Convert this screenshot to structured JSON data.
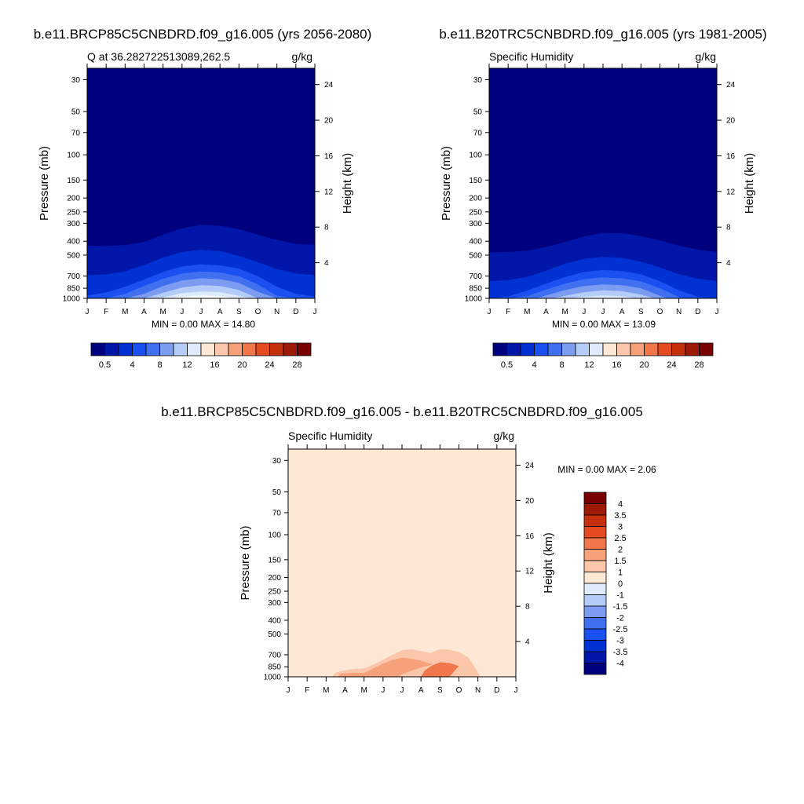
{
  "panels": [
    {
      "title": "b.e11.BRCP85C5CNBDRD.f09_g16.005 (yrs 2056-2080)",
      "left_label": "Q at 36.282722513089,262.5",
      "right_label": "g/kg",
      "stats": "MIN =   0.00 MAX =  14.80"
    },
    {
      "title": "b.e11.B20TRC5CNBDRD.f09_g16.005 (yrs 1981-2005)",
      "left_label": "Specific Humidity",
      "right_label": "g/kg",
      "stats": "MIN =   0.00 MAX =  13.09"
    },
    {
      "title": "b.e11.BRCP85C5CNBDRD.f09_g16.005 - b.e11.B20TRC5CNBDRD.f09_g16.005",
      "left_label": "Specific Humidity",
      "right_label": "g/kg",
      "stats": "MIN =   0.00 MAX =   2.06"
    }
  ],
  "colors": {
    "abs_colorbar": [
      "#00007f",
      "#0016a8",
      "#0031d3",
      "#1a4ff1",
      "#4070f0",
      "#7c9cf2",
      "#b6ccf8",
      "#deebfb",
      "#fde8d6",
      "#fbc6aa",
      "#f7a17a",
      "#f0774b",
      "#e64a20",
      "#c52f0c",
      "#9c1a06",
      "#780000"
    ],
    "diff_colorbar": [
      "#00007f",
      "#0016a8",
      "#0031d3",
      "#1a4ff1",
      "#4070f0",
      "#7c9cf2",
      "#b6ccf8",
      "#deebfb",
      "#fde8d6",
      "#fbc6aa",
      "#f7a17a",
      "#f0774b",
      "#e64a20",
      "#c52f0c",
      "#9c1a06",
      "#780000"
    ]
  },
  "chart_data": [
    {
      "type": "heatmap",
      "title": "b.e11.BRCP85C5CNBDRD.f09_g16.005 (yrs 2056-2080)",
      "subtitle": "Q at 36.282722513089,262.5",
      "units": "g/kg",
      "xlabel": "",
      "ylabel": "Pressure (mb)",
      "y2label": "Height (km)",
      "x_ticks": [
        "J",
        "F",
        "M",
        "A",
        "M",
        "J",
        "J",
        "A",
        "S",
        "O",
        "N",
        "D",
        "J"
      ],
      "y_ticks": [
        30,
        50,
        70,
        100,
        150,
        200,
        250,
        300,
        400,
        500,
        700,
        850,
        1000
      ],
      "y2_ticks": [
        24,
        20,
        16,
        12,
        8,
        4
      ],
      "ylim": [
        1000,
        25
      ],
      "y_scale": "log",
      "min": 0.0,
      "max": 14.8,
      "colorbar": {
        "orientation": "horizontal",
        "labels": [
          "0.5",
          "4",
          "8",
          "12",
          "16",
          "20",
          "24",
          "28"
        ]
      },
      "contour_levels": [
        0.5,
        2,
        4,
        6,
        8,
        10,
        12,
        14
      ],
      "contour_level_colors": [
        "#0016a8",
        "#0031d3",
        "#1a4ff1",
        "#4070f0",
        "#7c9cf2",
        "#b6ccf8",
        "#deebfb",
        "#ffffff"
      ],
      "contours": [
        [
          [
            0,
            430
          ],
          [
            1,
            432
          ],
          [
            2,
            425
          ],
          [
            3,
            405
          ],
          [
            4,
            360
          ],
          [
            5,
            325
          ],
          [
            6,
            308
          ],
          [
            7,
            312
          ],
          [
            8,
            330
          ],
          [
            9,
            360
          ],
          [
            10,
            392
          ],
          [
            11,
            418
          ],
          [
            12,
            425
          ]
        ],
        [
          [
            0,
            690
          ],
          [
            1,
            680
          ],
          [
            2,
            650
          ],
          [
            3,
            585
          ],
          [
            4,
            520
          ],
          [
            5,
            475
          ],
          [
            6,
            460
          ],
          [
            7,
            470
          ],
          [
            8,
            505
          ],
          [
            9,
            560
          ],
          [
            10,
            625
          ],
          [
            11,
            670
          ],
          [
            12,
            690
          ]
        ],
        [
          [
            0,
            960
          ],
          [
            1,
            910
          ],
          [
            2,
            830
          ],
          [
            3,
            740
          ],
          [
            4,
            655
          ],
          [
            5,
            600
          ],
          [
            6,
            580
          ],
          [
            7,
            590
          ],
          [
            8,
            620
          ],
          [
            9,
            700
          ],
          [
            10,
            830
          ],
          [
            11,
            930
          ],
          [
            12,
            975
          ]
        ],
        [
          [
            0,
            1000
          ],
          [
            1,
            1000
          ],
          [
            2,
            930
          ],
          [
            3,
            820
          ],
          [
            4,
            730
          ],
          [
            5,
            670
          ],
          [
            6,
            650
          ],
          [
            7,
            660
          ],
          [
            8,
            700
          ],
          [
            9,
            800
          ],
          [
            10,
            960
          ],
          [
            11,
            1000
          ],
          [
            12,
            1000
          ]
        ],
        [
          [
            2,
            1000
          ],
          [
            3,
            930
          ],
          [
            4,
            820
          ],
          [
            5,
            750
          ],
          [
            6,
            725
          ],
          [
            7,
            735
          ],
          [
            8,
            780
          ],
          [
            9,
            900
          ],
          [
            10,
            1000
          ]
        ],
        [
          [
            3,
            1000
          ],
          [
            4,
            915
          ],
          [
            5,
            840
          ],
          [
            6,
            810
          ],
          [
            7,
            820
          ],
          [
            8,
            875
          ],
          [
            9,
            1000
          ]
        ],
        [
          [
            3.5,
            1000
          ],
          [
            4,
            985
          ],
          [
            5,
            920
          ],
          [
            6,
            895
          ],
          [
            7,
            905
          ],
          [
            8,
            960
          ],
          [
            8.6,
            1000
          ]
        ],
        [
          [
            4.3,
            1000
          ],
          [
            5,
            975
          ],
          [
            6,
            955
          ],
          [
            7,
            965
          ],
          [
            7.7,
            1000
          ]
        ]
      ]
    },
    {
      "type": "heatmap",
      "title": "b.e11.B20TRC5CNBDRD.f09_g16.005 (yrs 1981-2005)",
      "subtitle": "Specific Humidity",
      "units": "g/kg",
      "xlabel": "",
      "ylabel": "Pressure (mb)",
      "y2label": "Height (km)",
      "x_ticks": [
        "J",
        "F",
        "M",
        "A",
        "M",
        "J",
        "J",
        "A",
        "S",
        "O",
        "N",
        "D",
        "J"
      ],
      "y_ticks": [
        30,
        50,
        70,
        100,
        150,
        200,
        250,
        300,
        400,
        500,
        700,
        850,
        1000
      ],
      "y2_ticks": [
        24,
        20,
        16,
        12,
        8,
        4
      ],
      "ylim": [
        1000,
        25
      ],
      "y_scale": "log",
      "min": 0.0,
      "max": 13.09,
      "colorbar": {
        "orientation": "horizontal",
        "labels": [
          "0.5",
          "4",
          "8",
          "12",
          "16",
          "20",
          "24",
          "28"
        ]
      },
      "contour_levels": [
        0.5,
        2,
        4,
        6,
        8,
        10,
        12
      ],
      "contour_level_colors": [
        "#0016a8",
        "#0031d3",
        "#1a4ff1",
        "#4070f0",
        "#7c9cf2",
        "#b6ccf8",
        "#deebfb"
      ],
      "contours": [
        [
          [
            0,
            480
          ],
          [
            1,
            475
          ],
          [
            2,
            465
          ],
          [
            3,
            440
          ],
          [
            4,
            405
          ],
          [
            5,
            370
          ],
          [
            6,
            350
          ],
          [
            7,
            352
          ],
          [
            8,
            368
          ],
          [
            9,
            395
          ],
          [
            10,
            430
          ],
          [
            11,
            458
          ],
          [
            12,
            475
          ]
        ],
        [
          [
            0,
            760
          ],
          [
            1,
            745
          ],
          [
            2,
            710
          ],
          [
            3,
            640
          ],
          [
            4,
            575
          ],
          [
            5,
            530
          ],
          [
            6,
            515
          ],
          [
            7,
            522
          ],
          [
            8,
            555
          ],
          [
            9,
            610
          ],
          [
            10,
            680
          ],
          [
            11,
            730
          ],
          [
            12,
            755
          ]
        ],
        [
          [
            0,
            1000
          ],
          [
            1,
            970
          ],
          [
            2,
            885
          ],
          [
            3,
            790
          ],
          [
            4,
            710
          ],
          [
            5,
            655
          ],
          [
            6,
            635
          ],
          [
            7,
            645
          ],
          [
            8,
            680
          ],
          [
            9,
            760
          ],
          [
            10,
            880
          ],
          [
            11,
            975
          ],
          [
            12,
            1000
          ]
        ],
        [
          [
            1,
            1000
          ],
          [
            2,
            965
          ],
          [
            3,
            870
          ],
          [
            4,
            790
          ],
          [
            5,
            735
          ],
          [
            6,
            715
          ],
          [
            7,
            725
          ],
          [
            8,
            760
          ],
          [
            9,
            850
          ],
          [
            10,
            980
          ],
          [
            10.3,
            1000
          ]
        ],
        [
          [
            2.5,
            1000
          ],
          [
            3,
            955
          ],
          [
            4,
            875
          ],
          [
            5,
            820
          ],
          [
            6,
            800
          ],
          [
            7,
            810
          ],
          [
            8,
            850
          ],
          [
            9,
            960
          ],
          [
            9.4,
            1000
          ]
        ],
        [
          [
            3.3,
            1000
          ],
          [
            4,
            960
          ],
          [
            5,
            905
          ],
          [
            6,
            880
          ],
          [
            7,
            890
          ],
          [
            8,
            940
          ],
          [
            8.7,
            1000
          ]
        ],
        [
          [
            4.2,
            1000
          ],
          [
            5,
            975
          ],
          [
            6,
            955
          ],
          [
            7,
            965
          ],
          [
            7.8,
            1000
          ]
        ]
      ]
    },
    {
      "type": "heatmap",
      "title": "b.e11.BRCP85C5CNBDRD.f09_g16.005 - b.e11.B20TRC5CNBDRD.f09_g16.005",
      "subtitle": "Specific Humidity",
      "units": "g/kg",
      "xlabel": "",
      "ylabel": "Pressure (mb)",
      "y2label": "Height (km)",
      "x_ticks": [
        "J",
        "F",
        "M",
        "A",
        "M",
        "J",
        "J",
        "A",
        "S",
        "O",
        "N",
        "D",
        "J"
      ],
      "y_ticks": [
        30,
        50,
        70,
        100,
        150,
        200,
        250,
        300,
        400,
        500,
        700,
        850,
        1000
      ],
      "y2_ticks": [
        24,
        20,
        16,
        12,
        8,
        4
      ],
      "ylim": [
        1000,
        25
      ],
      "y_scale": "log",
      "min": 0.0,
      "max": 2.06,
      "colorbar": {
        "orientation": "vertical",
        "labels": [
          "4",
          "3.5",
          "3",
          "2.5",
          "2",
          "1.5",
          "1",
          "0",
          "-1",
          "-1.5",
          "-2",
          "-2.5",
          "-3",
          "-3.5",
          "-4"
        ]
      },
      "contour_levels": [
        1,
        1.5,
        2
      ],
      "contour_level_colors": [
        "#fbc6aa",
        "#f7a17a",
        "#f0774b"
      ],
      "contours": [
        [
          [
            2.3,
            1000
          ],
          [
            2.5,
            935
          ],
          [
            3,
            900
          ],
          [
            3.5,
            880
          ],
          [
            4,
            870
          ],
          [
            4.5,
            820
          ],
          [
            5,
            760
          ],
          [
            5.5,
            700
          ],
          [
            6,
            650
          ],
          [
            6.5,
            640
          ],
          [
            7,
            660
          ],
          [
            7.5,
            680
          ],
          [
            8,
            640
          ],
          [
            8.5,
            645
          ],
          [
            9,
            670
          ],
          [
            9.5,
            730
          ],
          [
            9.8,
            840
          ],
          [
            10,
            930
          ],
          [
            10.1,
            1000
          ]
        ],
        [
          [
            2.6,
            1000
          ],
          [
            2.8,
            950
          ],
          [
            3.5,
            935
          ],
          [
            4,
            940
          ],
          [
            4.5,
            870
          ],
          [
            5,
            810
          ],
          [
            5.5,
            760
          ],
          [
            6,
            735
          ],
          [
            6.5,
            745
          ],
          [
            7,
            770
          ],
          [
            7.6,
            820
          ],
          [
            7,
            860
          ],
          [
            6.5,
            905
          ],
          [
            6,
            960
          ],
          [
            5.8,
            1000
          ]
        ],
        [
          [
            7,
            1000
          ],
          [
            7.2,
            900
          ],
          [
            7.6,
            830
          ],
          [
            8,
            790
          ],
          [
            8.5,
            800
          ],
          [
            9,
            840
          ],
          [
            8.7,
            930
          ],
          [
            8.5,
            1000
          ]
        ]
      ]
    }
  ]
}
